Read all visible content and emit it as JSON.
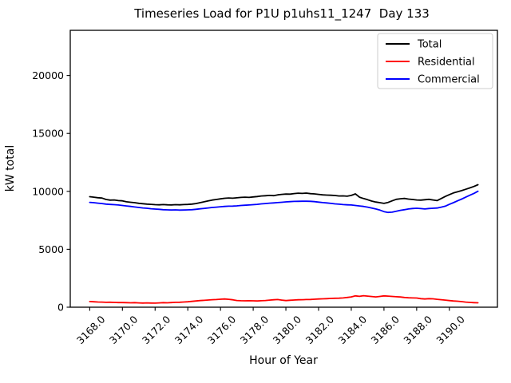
{
  "figure": {
    "background": "#ffffff"
  },
  "chart_data": {
    "type": "line",
    "title": "Timeseries Load for P1U p1uhs11_1247  Day 133",
    "xlabel": "Hour of Year",
    "ylabel": "kW total",
    "grid": false,
    "legend_position": "upper right",
    "legend_border_color": "#cccccc",
    "axis_color": "#000000",
    "xlim": [
      3166.81,
      3192.94
    ],
    "ylim": [
      0,
      23900
    ],
    "x_ticks": [
      3168,
      3170,
      3172,
      3174,
      3176,
      3178,
      3180,
      3182,
      3184,
      3186,
      3188,
      3190
    ],
    "x_tick_labels": [
      "3168.0",
      "3170.0",
      "3172.0",
      "3174.0",
      "3176.0",
      "3178.0",
      "3180.0",
      "3182.0",
      "3184.0",
      "3186.0",
      "3188.0",
      "3190.0"
    ],
    "y_ticks": [
      0,
      5000,
      10000,
      15000,
      20000
    ],
    "y_tick_labels": [
      "0",
      "5000",
      "10000",
      "15000",
      "20000"
    ],
    "x": [
      3168.0,
      3168.25,
      3168.5,
      3168.75,
      3169.0,
      3169.25,
      3169.5,
      3169.75,
      3170.0,
      3170.25,
      3170.5,
      3170.75,
      3171.0,
      3171.25,
      3171.5,
      3171.75,
      3172.0,
      3172.25,
      3172.5,
      3172.75,
      3173.0,
      3173.25,
      3173.5,
      3173.75,
      3174.0,
      3174.25,
      3174.5,
      3174.75,
      3175.0,
      3175.25,
      3175.5,
      3175.75,
      3176.0,
      3176.25,
      3176.5,
      3176.75,
      3177.0,
      3177.25,
      3177.5,
      3177.75,
      3178.0,
      3178.25,
      3178.5,
      3178.75,
      3179.0,
      3179.25,
      3179.5,
      3179.75,
      3180.0,
      3180.25,
      3180.5,
      3180.75,
      3181.0,
      3181.25,
      3181.5,
      3181.75,
      3182.0,
      3182.25,
      3182.5,
      3182.75,
      3183.0,
      3183.25,
      3183.5,
      3183.75,
      3184.0,
      3184.25,
      3184.5,
      3184.75,
      3185.0,
      3185.25,
      3185.5,
      3185.75,
      3186.0,
      3186.25,
      3186.5,
      3186.75,
      3187.0,
      3187.25,
      3187.5,
      3187.75,
      3188.0,
      3188.25,
      3188.5,
      3188.75,
      3189.0,
      3189.25,
      3189.5,
      3189.75,
      3190.0,
      3190.25,
      3190.5,
      3190.75,
      3191.0,
      3191.25,
      3191.5,
      3191.75
    ],
    "series": [
      {
        "name": "Total",
        "color": "#000000",
        "values": [
          9540,
          9500,
          9450,
          9420,
          9300,
          9240,
          9260,
          9200,
          9180,
          9100,
          9060,
          9020,
          8970,
          8930,
          8900,
          8880,
          8850,
          8840,
          8860,
          8840,
          8830,
          8850,
          8840,
          8860,
          8870,
          8900,
          8950,
          9020,
          9100,
          9180,
          9250,
          9300,
          9350,
          9400,
          9430,
          9410,
          9440,
          9480,
          9500,
          9480,
          9520,
          9550,
          9600,
          9620,
          9650,
          9630,
          9700,
          9740,
          9770,
          9760,
          9810,
          9840,
          9820,
          9850,
          9800,
          9780,
          9740,
          9700,
          9680,
          9660,
          9640,
          9600,
          9610,
          9580,
          9650,
          9780,
          9500,
          9380,
          9280,
          9160,
          9080,
          9020,
          8960,
          9040,
          9180,
          9310,
          9360,
          9390,
          9330,
          9300,
          9260,
          9240,
          9280,
          9310,
          9260,
          9200,
          9380,
          9560,
          9720,
          9860,
          9960,
          10060,
          10180,
          10300,
          10420,
          10570
        ]
      },
      {
        "name": "Residential",
        "color": "#ff0000",
        "values": [
          490,
          470,
          450,
          440,
          420,
          430,
          410,
          400,
          400,
          390,
          380,
          390,
          370,
          360,
          370,
          360,
          350,
          370,
          390,
          380,
          400,
          420,
          430,
          450,
          470,
          500,
          540,
          570,
          590,
          620,
          650,
          660,
          690,
          710,
          680,
          640,
          580,
          560,
          550,
          560,
          550,
          540,
          560,
          580,
          610,
          640,
          660,
          610,
          570,
          600,
          620,
          640,
          650,
          660,
          670,
          690,
          710,
          720,
          740,
          760,
          770,
          780,
          800,
          840,
          890,
          980,
          940,
          990,
          960,
          920,
          890,
          930,
          980,
          960,
          930,
          900,
          880,
          840,
          810,
          800,
          790,
          740,
          710,
          740,
          720,
          680,
          650,
          610,
          570,
          540,
          520,
          480,
          440,
          410,
          390,
          380
        ]
      },
      {
        "name": "Commercial",
        "color": "#0000ff",
        "values": [
          9050,
          9020,
          8980,
          8950,
          8900,
          8870,
          8850,
          8820,
          8780,
          8740,
          8700,
          8650,
          8610,
          8570,
          8540,
          8500,
          8470,
          8450,
          8420,
          8400,
          8390,
          8400,
          8380,
          8390,
          8400,
          8420,
          8450,
          8490,
          8530,
          8570,
          8610,
          8640,
          8670,
          8700,
          8720,
          8730,
          8750,
          8780,
          8800,
          8820,
          8850,
          8880,
          8920,
          8950,
          8980,
          9000,
          9030,
          9060,
          9090,
          9110,
          9130,
          9140,
          9150,
          9150,
          9140,
          9110,
          9070,
          9030,
          9000,
          8960,
          8920,
          8890,
          8860,
          8840,
          8820,
          8780,
          8740,
          8700,
          8640,
          8560,
          8480,
          8380,
          8250,
          8180,
          8200,
          8280,
          8360,
          8420,
          8480,
          8520,
          8540,
          8510,
          8480,
          8520,
          8540,
          8560,
          8640,
          8720,
          8880,
          9020,
          9180,
          9330,
          9500,
          9660,
          9820,
          10010
        ]
      }
    ]
  }
}
